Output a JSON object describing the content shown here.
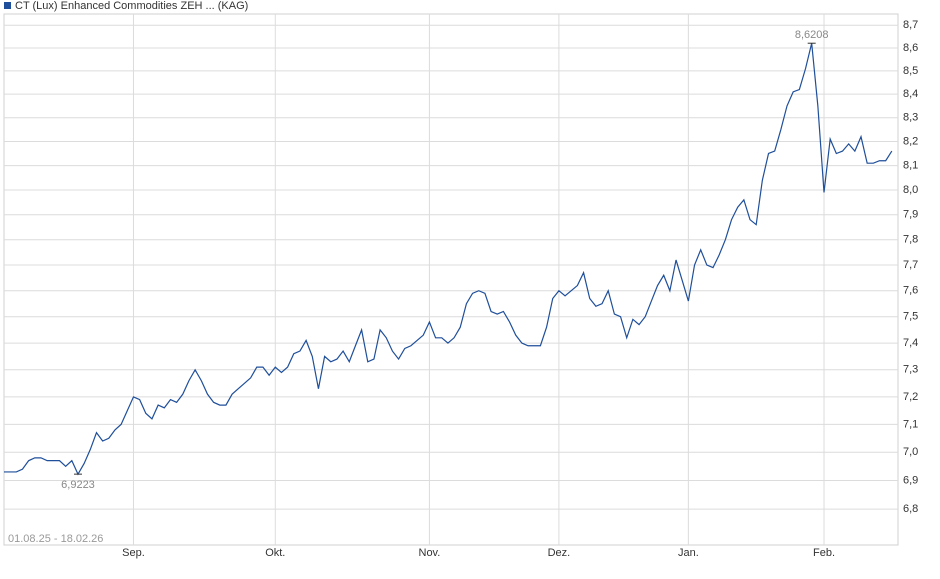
{
  "chart_data": {
    "type": "line",
    "series": [
      {
        "name": "CT (Lux) Enhanced Commodities ZEH ... (KAG)",
        "color": "#1f4f9a",
        "values": [
          6.93,
          6.93,
          6.93,
          6.94,
          6.97,
          6.98,
          6.98,
          6.97,
          6.97,
          6.97,
          6.95,
          6.97,
          6.9223,
          6.96,
          7.01,
          7.07,
          7.04,
          7.05,
          7.08,
          7.1,
          7.15,
          7.2,
          7.19,
          7.14,
          7.12,
          7.17,
          7.16,
          7.19,
          7.18,
          7.21,
          7.26,
          7.3,
          7.26,
          7.21,
          7.18,
          7.17,
          7.17,
          7.21,
          7.23,
          7.25,
          7.27,
          7.31,
          7.31,
          7.28,
          7.31,
          7.29,
          7.31,
          7.36,
          7.37,
          7.41,
          7.35,
          7.23,
          7.35,
          7.33,
          7.34,
          7.37,
          7.33,
          7.39,
          7.45,
          7.33,
          7.34,
          7.45,
          7.42,
          7.37,
          7.34,
          7.38,
          7.39,
          7.41,
          7.43,
          7.48,
          7.42,
          7.42,
          7.4,
          7.42,
          7.46,
          7.55,
          7.59,
          7.6,
          7.59,
          7.52,
          7.51,
          7.52,
          7.48,
          7.43,
          7.4,
          7.39,
          7.39,
          7.39,
          7.46,
          7.57,
          7.6,
          7.58,
          7.6,
          7.62,
          7.67,
          7.57,
          7.54,
          7.55,
          7.6,
          7.51,
          7.5,
          7.42,
          7.49,
          7.47,
          7.5,
          7.56,
          7.62,
          7.66,
          7.6,
          7.72,
          7.64,
          7.56,
          7.7,
          7.76,
          7.7,
          7.69,
          7.74,
          7.8,
          7.88,
          7.93,
          7.96,
          7.88,
          7.86,
          8.04,
          8.15,
          8.16,
          8.25,
          8.35,
          8.41,
          8.42,
          8.51,
          8.6208,
          8.35,
          7.99,
          8.21,
          8.15,
          8.16,
          8.19,
          8.16,
          8.22,
          8.11,
          8.11,
          8.12,
          8.12,
          8.16
        ],
        "value_labels": [
          null,
          null,
          null,
          null,
          null,
          null,
          null,
          null,
          null,
          null,
          null,
          null,
          "6,9223",
          null,
          null,
          null,
          null,
          null,
          null,
          null,
          null,
          null,
          null,
          null,
          null,
          null,
          null,
          null,
          null,
          null,
          null,
          null,
          null,
          null,
          null,
          null,
          null,
          null,
          null,
          null,
          null,
          null,
          null,
          null,
          null,
          null,
          null,
          null,
          null,
          null,
          null,
          null,
          null,
          null,
          null,
          null,
          null,
          null,
          null,
          null,
          null,
          null,
          null,
          null,
          null,
          null,
          null,
          null,
          null,
          null,
          null,
          null,
          null,
          null,
          null,
          null,
          null,
          null,
          null,
          null,
          null,
          null,
          null,
          null,
          null,
          null,
          null,
          null,
          null,
          null,
          null,
          null,
          null,
          null,
          null,
          null,
          null,
          null,
          null,
          null,
          null,
          null,
          null,
          null,
          null,
          null,
          null,
          null,
          null,
          null,
          null,
          null,
          null,
          null,
          null,
          null,
          null,
          null,
          null,
          null,
          null,
          null,
          null,
          null,
          null,
          null,
          null,
          null,
          null,
          null,
          null,
          "8,6208",
          null,
          null,
          null,
          null,
          null,
          null,
          null,
          null,
          null,
          null,
          null,
          null,
          null
        ]
      }
    ],
    "xlim": [
      0,
      145
    ],
    "xticks": [
      {
        "value": 21,
        "label": "Sep."
      },
      {
        "value": 44,
        "label": "Okt."
      },
      {
        "value": 69,
        "label": "Nov."
      },
      {
        "value": 90,
        "label": "Dez."
      },
      {
        "value": 111,
        "label": "Jan."
      },
      {
        "value": 133,
        "label": "Feb."
      }
    ],
    "ylim": [
      6.677,
      8.75
    ],
    "yticks": [
      {
        "value": 6.8,
        "label": "6,8"
      },
      {
        "value": 6.9,
        "label": "6,9"
      },
      {
        "value": 7.0,
        "label": "7,0"
      },
      {
        "value": 7.1,
        "label": "7,1"
      },
      {
        "value": 7.2,
        "label": "7,2"
      },
      {
        "value": 7.3,
        "label": "7,3"
      },
      {
        "value": 7.4,
        "label": "7,4"
      },
      {
        "value": 7.5,
        "label": "7,5"
      },
      {
        "value": 7.6,
        "label": "7,6"
      },
      {
        "value": 7.7,
        "label": "7,7"
      },
      {
        "value": 7.8,
        "label": "7,8"
      },
      {
        "value": 7.9,
        "label": "7,9"
      },
      {
        "value": 8.0,
        "label": "8,0"
      },
      {
        "value": 8.1,
        "label": "8,1"
      },
      {
        "value": 8.2,
        "label": "8,2"
      },
      {
        "value": 8.3,
        "label": "8,3"
      },
      {
        "value": 8.4,
        "label": "8,4"
      },
      {
        "value": 8.5,
        "label": "8,5"
      },
      {
        "value": 8.6,
        "label": "8,6"
      },
      {
        "value": 8.7,
        "label": "8,7"
      }
    ],
    "log_scale": true,
    "grid": true,
    "date_range": "01.08.25 - 18.02.26"
  }
}
